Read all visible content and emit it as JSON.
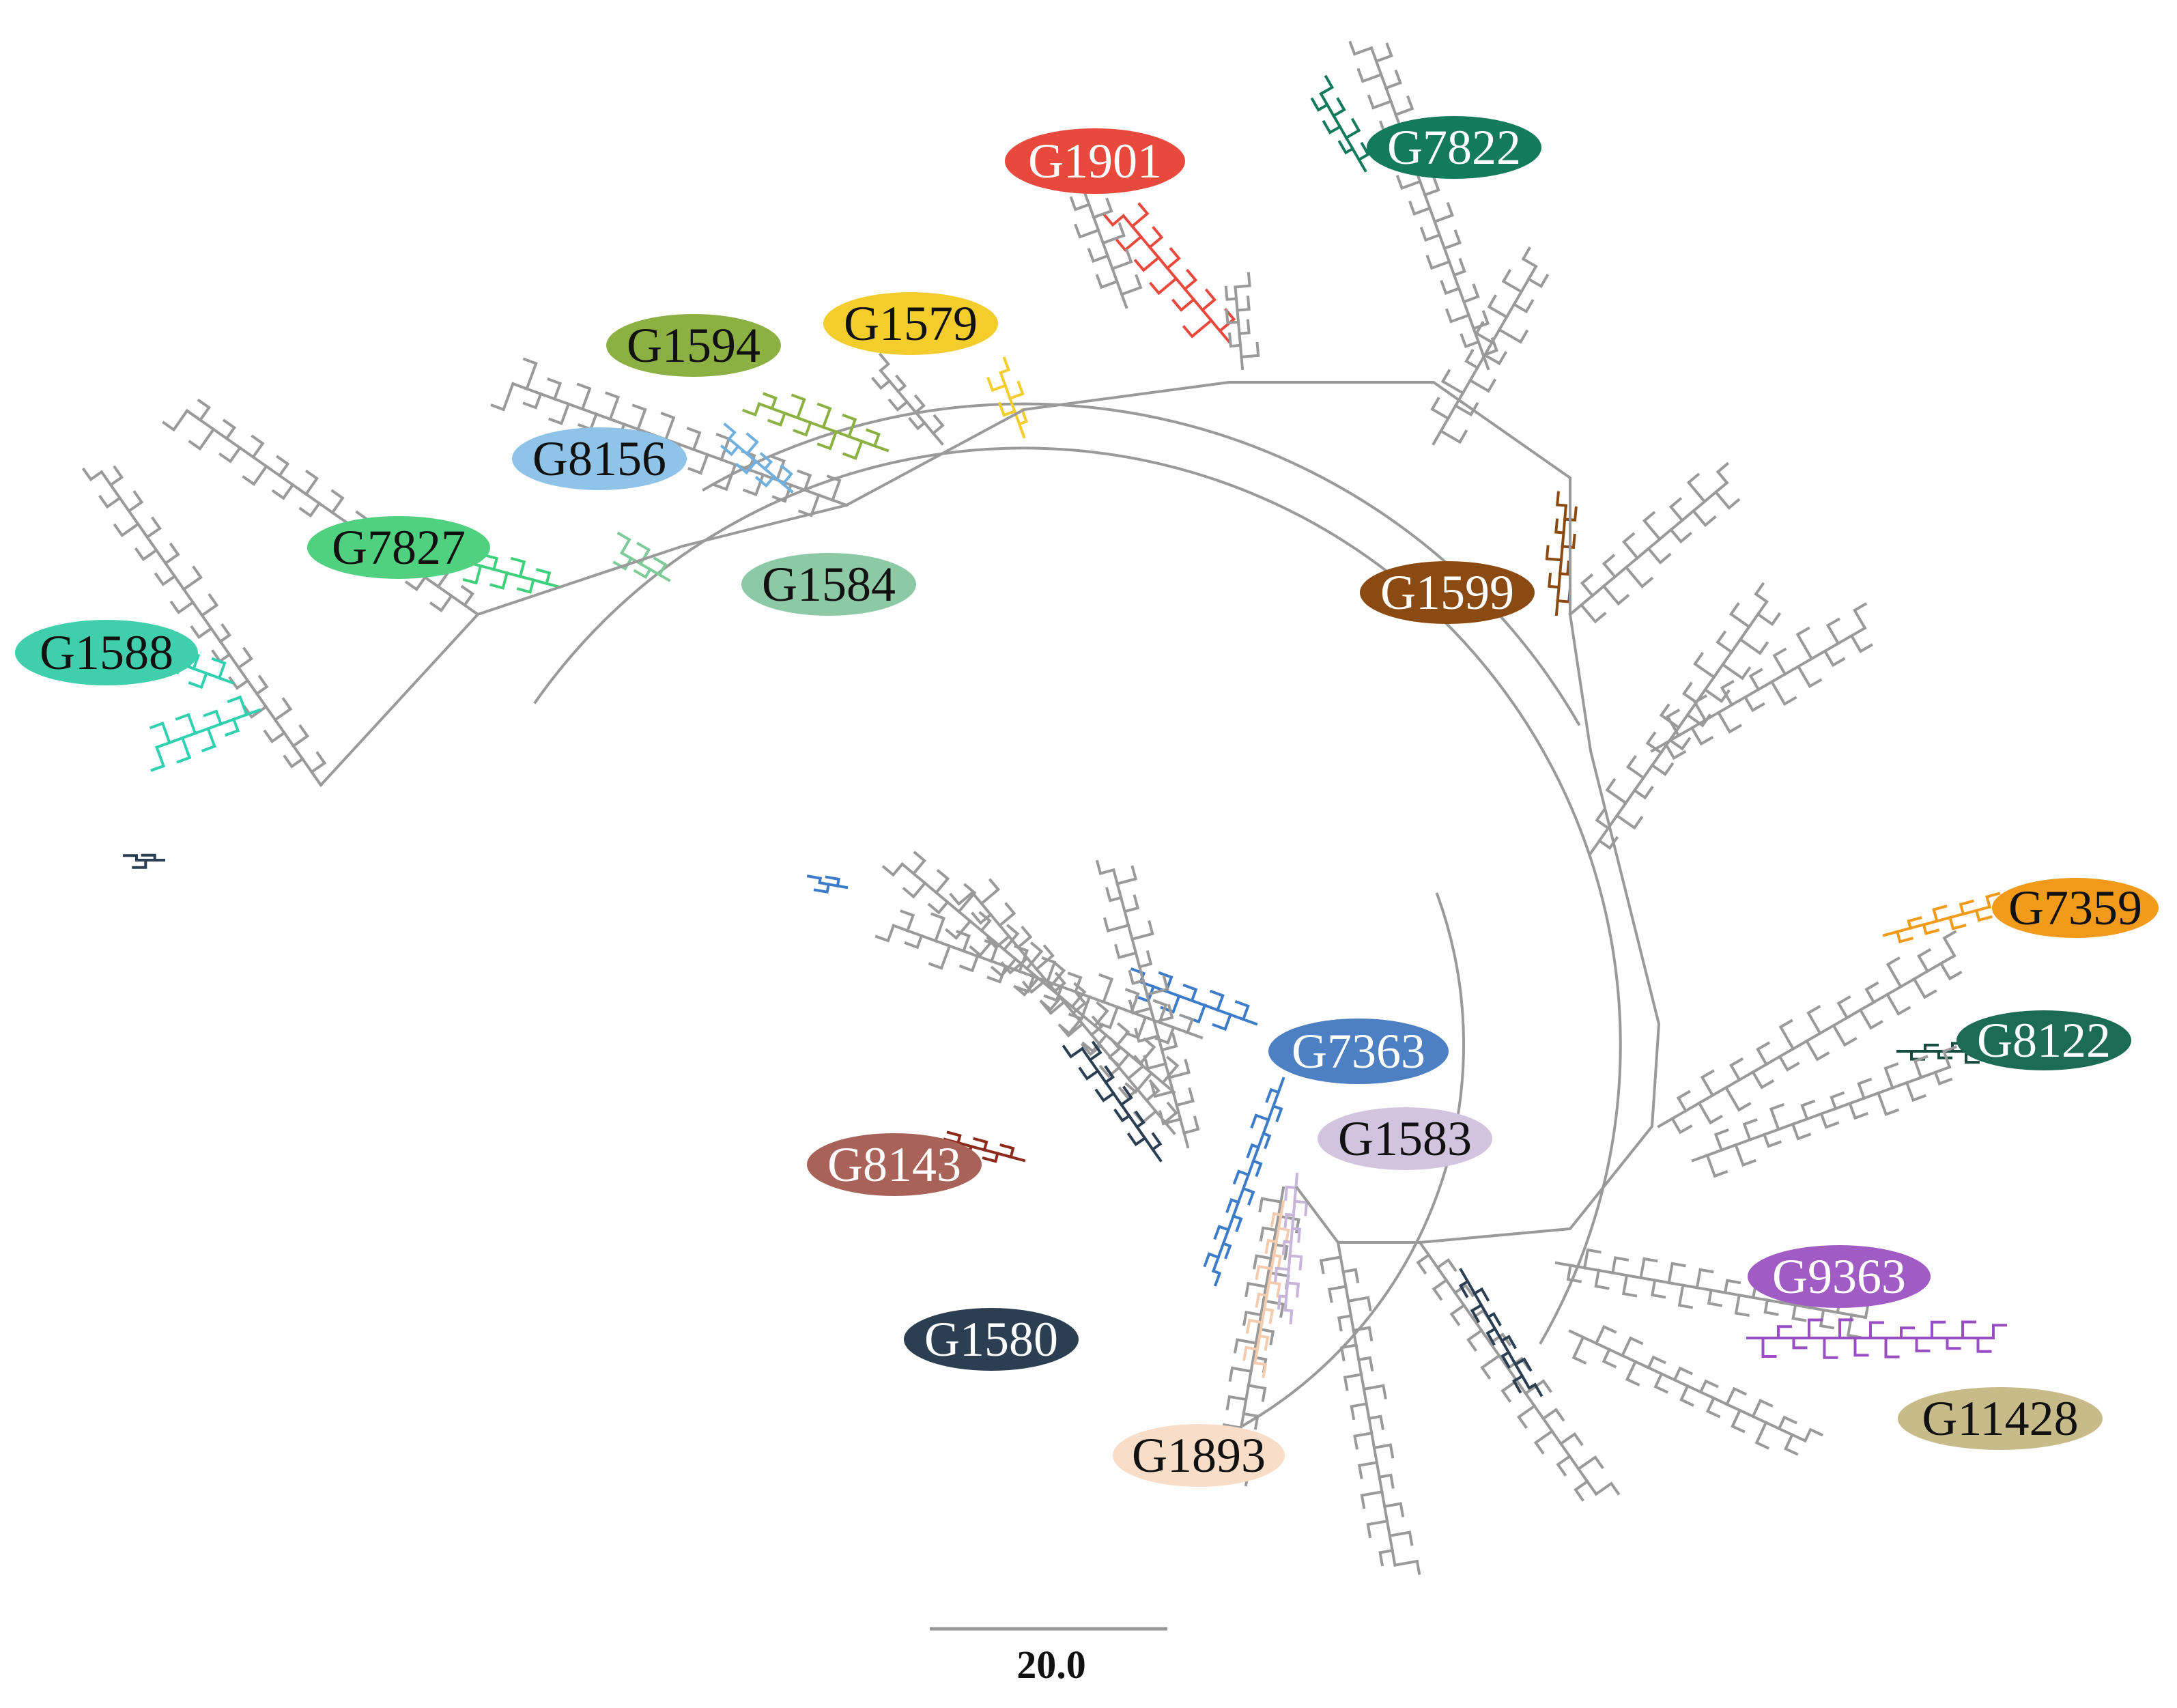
{
  "figure": {
    "scale_bar_label": "20.0",
    "colors": {
      "branch_default": "#9a9a9a",
      "background": "#ffffff"
    }
  },
  "clades": [
    {
      "id": "G1901",
      "label": "G1901",
      "fill": "#e8493c",
      "text_color": "#ffffff",
      "branch_color": "#e8493c"
    },
    {
      "id": "G7822",
      "label": "G7822",
      "fill": "#137a5a",
      "text_color": "#ffffff",
      "branch_color": "#137a5a"
    },
    {
      "id": "G1579",
      "label": "G1579",
      "fill": "#f2cd2c",
      "text_color": "#111111",
      "branch_color": "#f2cd2c"
    },
    {
      "id": "G1594",
      "label": "G1594",
      "fill": "#8db042",
      "text_color": "#111111",
      "branch_color": "#8db042"
    },
    {
      "id": "G8156",
      "label": "G8156",
      "fill": "#8fc4e8",
      "text_color": "#111111",
      "branch_color": "#6fb0de"
    },
    {
      "id": "G7827",
      "label": "G7827",
      "fill": "#4fd17f",
      "text_color": "#111111",
      "branch_color": "#3ed07a"
    },
    {
      "id": "G1584",
      "label": "G1584",
      "fill": "#8ec9a6",
      "text_color": "#111111",
      "branch_color": "#7ecb9a"
    },
    {
      "id": "G1588",
      "label": "G1588",
      "fill": "#3fcfad",
      "text_color": "#111111",
      "branch_color": "#2fd1b0"
    },
    {
      "id": "G1599",
      "label": "G1599",
      "fill": "#8b4a12",
      "text_color": "#ffffff",
      "branch_color": "#8b4a12"
    },
    {
      "id": "G7359",
      "label": "G7359",
      "fill": "#f29a1a",
      "text_color": "#111111",
      "branch_color": "#f29a1a"
    },
    {
      "id": "G8122",
      "label": "G8122",
      "fill": "#1c6b55",
      "text_color": "#ffffff",
      "branch_color": "#174d3e"
    },
    {
      "id": "G7363",
      "label": "G7363",
      "fill": "#4d7fc3",
      "text_color": "#ffffff",
      "branch_color": "#3d7cc9"
    },
    {
      "id": "G1583",
      "label": "G1583",
      "fill": "#d2c4de",
      "text_color": "#111111",
      "branch_color": "#c7b5da"
    },
    {
      "id": "G8143",
      "label": "G8143",
      "fill": "#a86258",
      "text_color": "#ffffff",
      "branch_color": "#8e2a1c"
    },
    {
      "id": "G1580",
      "label": "G1580",
      "fill": "#2c3e52",
      "text_color": "#ffffff",
      "branch_color": "#2c3e52"
    },
    {
      "id": "G1893",
      "label": "G1893",
      "fill": "#f8ddc8",
      "text_color": "#111111",
      "branch_color": "#f3ccb0"
    },
    {
      "id": "G9363",
      "label": "G9363",
      "fill": "#a05bc4",
      "text_color": "#ffffff",
      "branch_color": "#9a4ec4"
    },
    {
      "id": "G11428",
      "label": "G11428",
      "fill": "#c8bb8a",
      "text_color": "#111111",
      "branch_color": "#c8bb8a"
    }
  ]
}
